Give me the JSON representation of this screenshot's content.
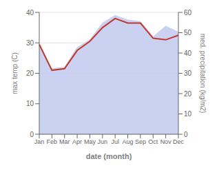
{
  "chart_data": {
    "type": "line",
    "categories": [
      "Jan",
      "Feb",
      "Mar",
      "Apr",
      "May",
      "Jun",
      "Jul",
      "Aug",
      "Sep",
      "Oct",
      "Nov",
      "Dec"
    ],
    "series": [
      {
        "type": "area",
        "axis": "y2",
        "color": "#c5cdf0",
        "values": [
          43.5,
          32.25,
          33,
          42.75,
          46.5,
          54.75,
          58.5,
          56.25,
          55.5,
          48,
          53.25,
          50.25
        ]
      },
      {
        "type": "line",
        "color": "#c0392b",
        "values": [
          29.5,
          21.0,
          21.5,
          27.5,
          30.5,
          35.0,
          38.0,
          36.5,
          36.5,
          31.5,
          31.0,
          32.5
        ]
      }
    ],
    "xlabel": "date (month)",
    "ylabel": "max temp (C)",
    "y2label": "med. precipitation (kg/m2)",
    "ylim": [
      0,
      40
    ],
    "yticks": [
      0,
      10,
      20,
      30,
      40
    ],
    "y2lim": [
      0,
      60
    ],
    "y2ticks": [
      0,
      10,
      20,
      30,
      40,
      50,
      60
    ],
    "grid": true
  }
}
